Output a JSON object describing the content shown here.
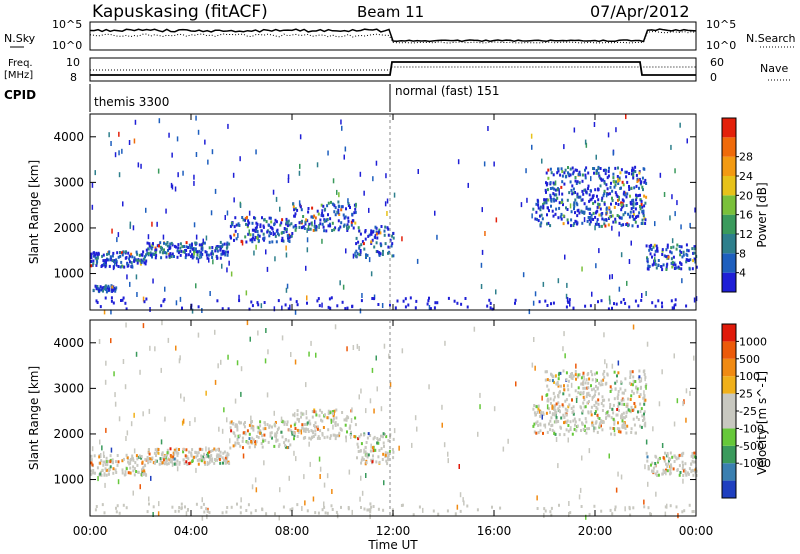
{
  "header": {
    "station": "Kapuskasing (fitACF)",
    "beam": "Beam 11",
    "date": "07/Apr/2012"
  },
  "panels": {
    "nsky_label": "N.Sky",
    "nsky_ticks": [
      "10^5",
      "10^0"
    ],
    "nsearch_label": "N.Search",
    "nsearch_ticks": [
      "10^5",
      "10^0"
    ],
    "freq_label": "Freq.",
    "freq_unit": "[MHz]",
    "freq_ticks": [
      "10",
      "8"
    ],
    "nave_label": "Nave",
    "nave_ticks": [
      "60",
      "0"
    ],
    "cpid_label": "CPID",
    "cpid_modes": [
      "themis 3300",
      "normal (fast) 151"
    ]
  },
  "chart_data": [
    {
      "type": "heatmap",
      "name_ref": "power",
      "ylabel": "Slant Range [km]",
      "ylim": [
        200,
        4500
      ],
      "yticks": [
        "1000",
        "2000",
        "3000",
        "4000"
      ],
      "colorbar": {
        "label": "Power [dB]",
        "ticks": [
          "4",
          "8",
          "12",
          "16",
          "20",
          "24",
          "28"
        ],
        "colors": [
          "#1f1fd6",
          "#1e5fbe",
          "#2e7f8c",
          "#3a9a5c",
          "#7ac03a",
          "#e7c21a",
          "#f39a12",
          "#ef6a0a",
          "#e3200a"
        ]
      },
      "bands": [
        {
          "x0": 0.1,
          "x1": 1.0,
          "y0": 550,
          "y1": 700
        },
        {
          "x0": 0.0,
          "x1": 2.2,
          "y0": 1100,
          "y1": 1450
        },
        {
          "x0": 2.2,
          "x1": 5.5,
          "y0": 1300,
          "y1": 1650
        },
        {
          "x0": 5.5,
          "x1": 8.0,
          "y0": 1650,
          "y1": 2200
        },
        {
          "x0": 8.0,
          "x1": 10.5,
          "y0": 1900,
          "y1": 2550
        },
        {
          "x0": 10.5,
          "x1": 12.0,
          "y0": 1300,
          "y1": 2000
        },
        {
          "x0": 17.5,
          "x1": 22.0,
          "y0": 2000,
          "y1": 2600
        },
        {
          "x0": 18.0,
          "x1": 22.0,
          "y0": 2600,
          "y1": 3300
        },
        {
          "x0": 22.0,
          "x1": 24.0,
          "y0": 1050,
          "y1": 1600
        }
      ]
    },
    {
      "type": "heatmap",
      "name_ref": "velocity",
      "ylabel": "Slant Range [km]",
      "ylim": [
        200,
        4500
      ],
      "yticks": [
        "1000",
        "2000",
        "3000",
        "4000"
      ],
      "xlabel": "Time UT",
      "xticks": [
        "00:00",
        "04:00",
        "08:00",
        "12:00",
        "16:00",
        "20:00",
        "00:00"
      ],
      "xrange_hours": [
        0,
        24
      ],
      "colorbar": {
        "label": "Velocity [m s^-1]",
        "ticks": [
          "1000",
          "500",
          "100",
          "25",
          "-25",
          "-100",
          "-500",
          "-1000"
        ],
        "colors": [
          "#1f3fbf",
          "#3a7fb0",
          "#3a9a5c",
          "#66c83a",
          "#c8c8c0",
          "#c8c8c0",
          "#f0b01a",
          "#f08a12",
          "#ec5a0a",
          "#e01a0a"
        ]
      },
      "bands": [
        {
          "x0": 0.0,
          "x1": 2.2,
          "y0": 1050,
          "y1": 1500
        },
        {
          "x0": 2.2,
          "x1": 5.5,
          "y0": 1300,
          "y1": 1650
        },
        {
          "x0": 5.5,
          "x1": 8.0,
          "y0": 1650,
          "y1": 2250
        },
        {
          "x0": 8.0,
          "x1": 10.5,
          "y0": 1850,
          "y1": 2500
        },
        {
          "x0": 10.5,
          "x1": 12.0,
          "y0": 1300,
          "y1": 2000
        },
        {
          "x0": 17.5,
          "x1": 22.0,
          "y0": 1950,
          "y1": 2600
        },
        {
          "x0": 18.0,
          "x1": 22.0,
          "y0": 2600,
          "y1": 3350
        },
        {
          "x0": 22.0,
          "x1": 24.0,
          "y0": 1050,
          "y1": 1550
        }
      ]
    }
  ]
}
